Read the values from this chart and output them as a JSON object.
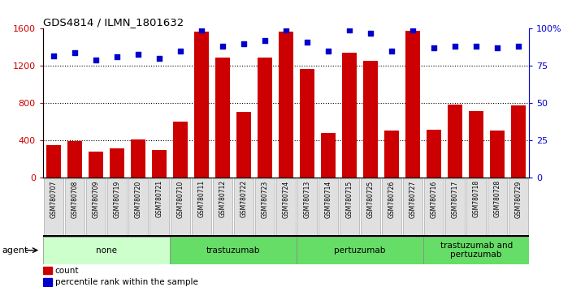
{
  "title": "GDS4814 / ILMN_1801632",
  "samples": [
    "GSM780707",
    "GSM780708",
    "GSM780709",
    "GSM780719",
    "GSM780720",
    "GSM780721",
    "GSM780710",
    "GSM780711",
    "GSM780712",
    "GSM780722",
    "GSM780723",
    "GSM780724",
    "GSM780713",
    "GSM780714",
    "GSM780715",
    "GSM780725",
    "GSM780726",
    "GSM780727",
    "GSM780716",
    "GSM780717",
    "GSM780718",
    "GSM780728",
    "GSM780729"
  ],
  "counts": [
    355,
    395,
    285,
    320,
    410,
    300,
    600,
    1570,
    1290,
    710,
    1290,
    1570,
    1170,
    480,
    1340,
    1260,
    510,
    1580,
    520,
    790,
    720,
    510,
    780
  ],
  "percentiles": [
    82,
    84,
    79,
    81,
    83,
    80,
    85,
    99,
    88,
    90,
    92,
    99,
    91,
    85,
    99,
    97,
    85,
    99,
    87,
    88,
    88,
    87,
    88
  ],
  "groups": [
    {
      "label": "none",
      "start": 0,
      "end": 6,
      "color": "#ccffcc"
    },
    {
      "label": "trastuzumab",
      "start": 6,
      "end": 12,
      "color": "#66dd66"
    },
    {
      "label": "pertuzumab",
      "start": 12,
      "end": 18,
      "color": "#66dd66"
    },
    {
      "label": "trastuzumab and\npertuzumab",
      "start": 18,
      "end": 23,
      "color": "#66dd66"
    }
  ],
  "bar_color": "#cc0000",
  "dot_color": "#0000cc",
  "ylim_left": [
    0,
    1600
  ],
  "ylim_right": [
    0,
    100
  ],
  "yticks_left": [
    0,
    400,
    800,
    1200,
    1600
  ],
  "ytick_labels_left": [
    "0",
    "400",
    "800",
    "1200",
    "1600"
  ],
  "yticks_right": [
    0,
    25,
    50,
    75,
    100
  ],
  "ytick_labels_right": [
    "0",
    "25",
    "50",
    "75",
    "100%"
  ],
  "grid_lines": [
    400,
    800,
    1200
  ],
  "plot_bg": "#ffffff",
  "fig_bg": "#ffffff",
  "agent_label": "agent",
  "legend_items": [
    "count",
    "percentile rank within the sample"
  ]
}
